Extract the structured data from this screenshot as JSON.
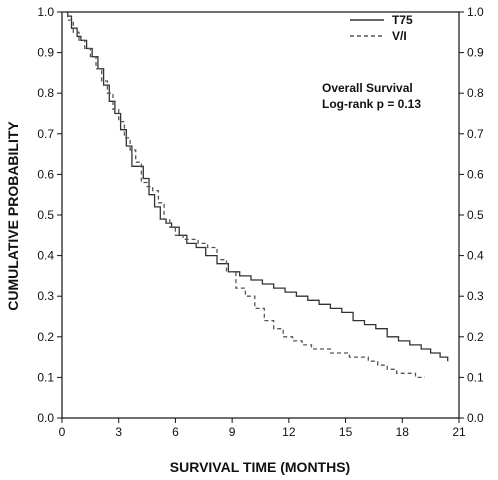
{
  "chart_data": {
    "type": "line",
    "title": "",
    "xlabel": "SURVIVAL TIME (MONTHS)",
    "ylabel": "CUMULATIVE PROBABILITY",
    "xlim": [
      0,
      21
    ],
    "ylim": [
      0.0,
      1.0
    ],
    "x_ticks": [
      "0",
      "3",
      "6",
      "9",
      "12",
      "15",
      "18",
      "21"
    ],
    "y_ticks": [
      "0.0",
      "0.1",
      "0.2",
      "0.3",
      "0.4",
      "0.5",
      "0.6",
      "0.7",
      "0.8",
      "0.9",
      "1.0"
    ],
    "grid": false,
    "right_axis_mirrored": true,
    "legend_position": "top-right",
    "annotation": [
      "Overall Survival",
      "Log-rank p = 0.13"
    ],
    "series": [
      {
        "name": "T75",
        "line_style": "solid",
        "color": "#333333",
        "x": [
          0,
          0.3,
          0.5,
          0.8,
          1.0,
          1.3,
          1.6,
          1.9,
          2.2,
          2.5,
          2.8,
          3.1,
          3.4,
          3.7,
          4.0,
          4.3,
          4.6,
          4.9,
          5.2,
          5.5,
          5.8,
          6.2,
          6.6,
          7.1,
          7.6,
          8.2,
          8.8,
          9.4,
          10.0,
          10.6,
          11.2,
          11.8,
          12.4,
          13.0,
          13.6,
          14.2,
          14.8,
          15.4,
          16.0,
          16.6,
          17.2,
          17.8,
          18.4,
          19.0,
          19.5,
          20.0,
          20.4
        ],
        "y": [
          1.0,
          0.99,
          0.96,
          0.94,
          0.93,
          0.91,
          0.89,
          0.86,
          0.82,
          0.78,
          0.75,
          0.71,
          0.67,
          0.62,
          0.62,
          0.59,
          0.55,
          0.52,
          0.49,
          0.48,
          0.47,
          0.45,
          0.43,
          0.42,
          0.4,
          0.38,
          0.36,
          0.35,
          0.34,
          0.33,
          0.32,
          0.31,
          0.3,
          0.29,
          0.28,
          0.27,
          0.26,
          0.24,
          0.23,
          0.22,
          0.2,
          0.19,
          0.18,
          0.17,
          0.16,
          0.15,
          0.14
        ]
      },
      {
        "name": "V/I",
        "line_style": "dashed",
        "color": "#555555",
        "x": [
          0,
          0.3,
          0.6,
          0.9,
          1.2,
          1.5,
          1.8,
          2.1,
          2.4,
          2.7,
          3.0,
          3.3,
          3.6,
          3.9,
          4.2,
          4.5,
          4.8,
          5.1,
          5.4,
          5.7,
          6.0,
          6.4,
          6.8,
          7.2,
          7.7,
          8.2,
          8.7,
          9.2,
          9.7,
          10.2,
          10.7,
          11.2,
          11.7,
          12.2,
          12.7,
          13.2,
          13.7,
          14.2,
          14.7,
          15.2,
          15.7,
          16.2,
          16.7,
          17.2,
          17.7,
          18.2,
          18.7,
          19.2
        ],
        "y": [
          1.0,
          0.98,
          0.95,
          0.93,
          0.91,
          0.89,
          0.86,
          0.83,
          0.8,
          0.76,
          0.73,
          0.69,
          0.66,
          0.63,
          0.58,
          0.57,
          0.56,
          0.53,
          0.49,
          0.47,
          0.45,
          0.44,
          0.44,
          0.43,
          0.42,
          0.39,
          0.36,
          0.32,
          0.3,
          0.27,
          0.24,
          0.22,
          0.2,
          0.19,
          0.18,
          0.17,
          0.17,
          0.16,
          0.16,
          0.15,
          0.15,
          0.14,
          0.13,
          0.12,
          0.11,
          0.11,
          0.1,
          0.1
        ]
      }
    ]
  }
}
